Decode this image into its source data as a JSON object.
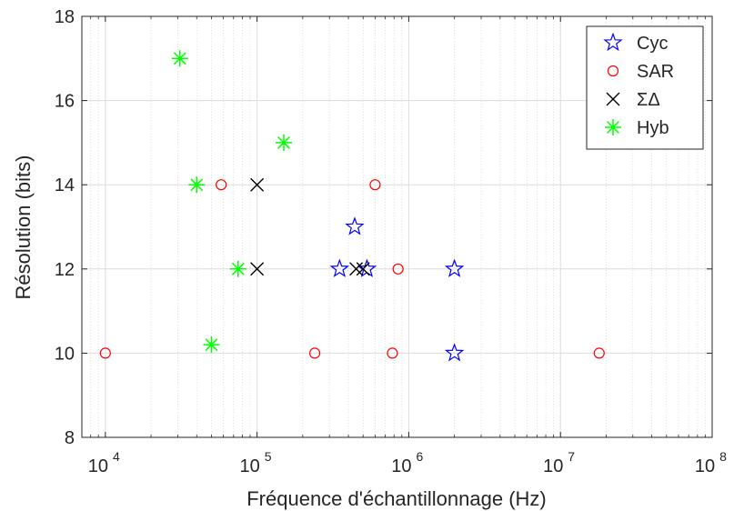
{
  "chart_data": {
    "type": "scatter",
    "xlabel": "Fréquence d'échantillonnage (Hz)",
    "ylabel": "Résolution (bits)",
    "xscale": "log",
    "xlim": [
      7000,
      100000000
    ],
    "ylim": [
      8,
      18
    ],
    "grid": true,
    "legend_position": "top-right",
    "x_ticks": [
      10000,
      100000,
      1000000,
      10000000,
      100000000
    ],
    "x_tick_labels": [
      {
        "base": "10",
        "exp": "4"
      },
      {
        "base": "10",
        "exp": "5"
      },
      {
        "base": "10",
        "exp": "6"
      },
      {
        "base": "10",
        "exp": "7"
      },
      {
        "base": "10",
        "exp": "8"
      }
    ],
    "y_ticks": [
      8,
      10,
      12,
      14,
      16,
      18
    ],
    "y_tick_labels": [
      "8",
      "10",
      "12",
      "14",
      "16",
      "18"
    ],
    "series": [
      {
        "name": "Cyc",
        "marker": "star",
        "color": "#0000ff",
        "points": [
          [
            350000,
            12
          ],
          [
            440000,
            13
          ],
          [
            530000,
            12
          ],
          [
            2000000,
            12
          ],
          [
            2000000,
            10
          ]
        ]
      },
      {
        "name": "SAR",
        "marker": "circle",
        "color": "#ff0000",
        "points": [
          [
            10000,
            10
          ],
          [
            58000,
            14
          ],
          [
            240000,
            10
          ],
          [
            600000,
            14
          ],
          [
            780000,
            10
          ],
          [
            850000,
            12
          ],
          [
            18000000,
            10
          ]
        ]
      },
      {
        "name": "ΣΔ",
        "marker": "x",
        "color": "#000000",
        "points": [
          [
            100000,
            14
          ],
          [
            100000,
            12
          ],
          [
            450000,
            12
          ],
          [
            500000,
            12
          ]
        ]
      },
      {
        "name": "Hyb",
        "marker": "asterisk",
        "color": "#00ff00",
        "points": [
          [
            31000,
            17
          ],
          [
            40000,
            14
          ],
          [
            50000,
            10.2
          ],
          [
            75000,
            12
          ],
          [
            150000,
            15
          ]
        ]
      }
    ]
  }
}
